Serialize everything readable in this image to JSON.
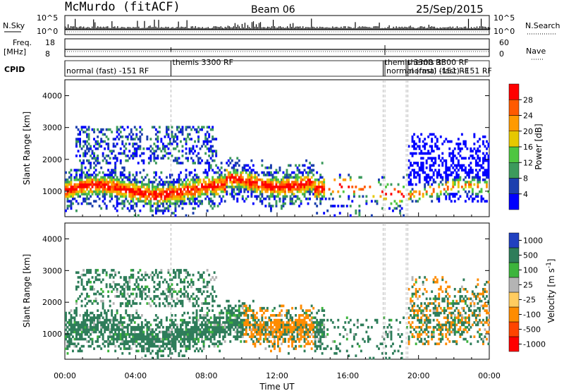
{
  "header": {
    "station": "McMurdo (fitACF)",
    "beam": "Beam 06",
    "date": "25/Sep/2015"
  },
  "strip_nsky": {
    "left_label": "N.Sky",
    "right_label": "N.Search",
    "ticks": [
      "10^5",
      "10^0"
    ]
  },
  "strip_freq": {
    "left_label_1": "Freq.",
    "left_label_2": "[MHz]",
    "left_ticks": [
      "18",
      "8"
    ],
    "right_label": "Nave",
    "right_ticks": [
      "60",
      "0"
    ]
  },
  "cpid": {
    "label": "CPID",
    "segments": [
      {
        "text": "normal (fast) -151 RF",
        "start_hour": 0.0
      },
      {
        "text": "themis 3300 RF",
        "start_hour": 6.0
      },
      {
        "text": "themis 3300 RF",
        "start_hour": 18.0
      },
      {
        "text": "normal (fast) -151 RF",
        "start_hour": 18.1
      },
      {
        "text": "themis 3300 RF",
        "start_hour": 19.3
      },
      {
        "text": "normal (fast) -151 RF",
        "start_hour": 19.4
      }
    ]
  },
  "colors": {
    "power_scale": [
      "#0000ff",
      "#1c3fae",
      "#3c9a5c",
      "#4ec640",
      "#e6c800",
      "#ff9a00",
      "#ff5a00",
      "#ff0000"
    ],
    "velocity_scale": [
      "#2040c0",
      "#2e7d5a",
      "#3cb43c",
      "#b4b4b4",
      "#ffcc60",
      "#ff8c00",
      "#ff4400",
      "#ff0000"
    ]
  },
  "chart_data": [
    {
      "type": "heatmap",
      "name": "power",
      "ylabel": "Slant Range [km]",
      "x_range_hours": [
        0,
        24
      ],
      "ylim": [
        200,
        4500
      ],
      "yticks": [
        1000,
        2000,
        3000,
        4000
      ],
      "colorbar": {
        "label": "Power [dB]",
        "range": [
          0,
          32
        ],
        "ticks": [
          "28",
          "24",
          "20",
          "16",
          "12",
          "8",
          "4"
        ]
      },
      "scatter_bands": [
        {
          "t0": 0.0,
          "t1": 14.5,
          "r0": 600,
          "r1": 1700,
          "level": "high"
        },
        {
          "t0": 0.5,
          "t1": 8.5,
          "r0": 1800,
          "r1": 3000,
          "level": "medium"
        },
        {
          "t0": 19.5,
          "t1": 24.0,
          "r0": 600,
          "r1": 2800,
          "level": "medium"
        }
      ]
    },
    {
      "type": "heatmap",
      "name": "velocity",
      "ylabel": "Slant Range [km]",
      "xlabel": "Time UT",
      "x_range_hours": [
        0,
        24
      ],
      "ylim": [
        200,
        4500
      ],
      "yticks": [
        1000,
        2000,
        3000,
        4000
      ],
      "xticks": [
        "00:00",
        "04:00",
        "08:00",
        "12:00",
        "16:00",
        "20:00",
        "00:00"
      ],
      "colorbar": {
        "label": "Velocity [m s",
        "label_sup": "-1",
        "label_end": "]",
        "ticks": [
          "1000",
          "500",
          "100",
          "25",
          "-25",
          "-100",
          "-500",
          "-1000"
        ]
      },
      "scatter_bands": [
        {
          "t0": 0.0,
          "t1": 14.5,
          "r0": 600,
          "r1": 1700,
          "level": "positive"
        },
        {
          "t0": 10.0,
          "t1": 14.0,
          "r0": 800,
          "r1": 2000,
          "level": "negative"
        },
        {
          "t0": 19.5,
          "t1": 24.0,
          "r0": 700,
          "r1": 2700,
          "level": "mixed"
        }
      ]
    }
  ]
}
